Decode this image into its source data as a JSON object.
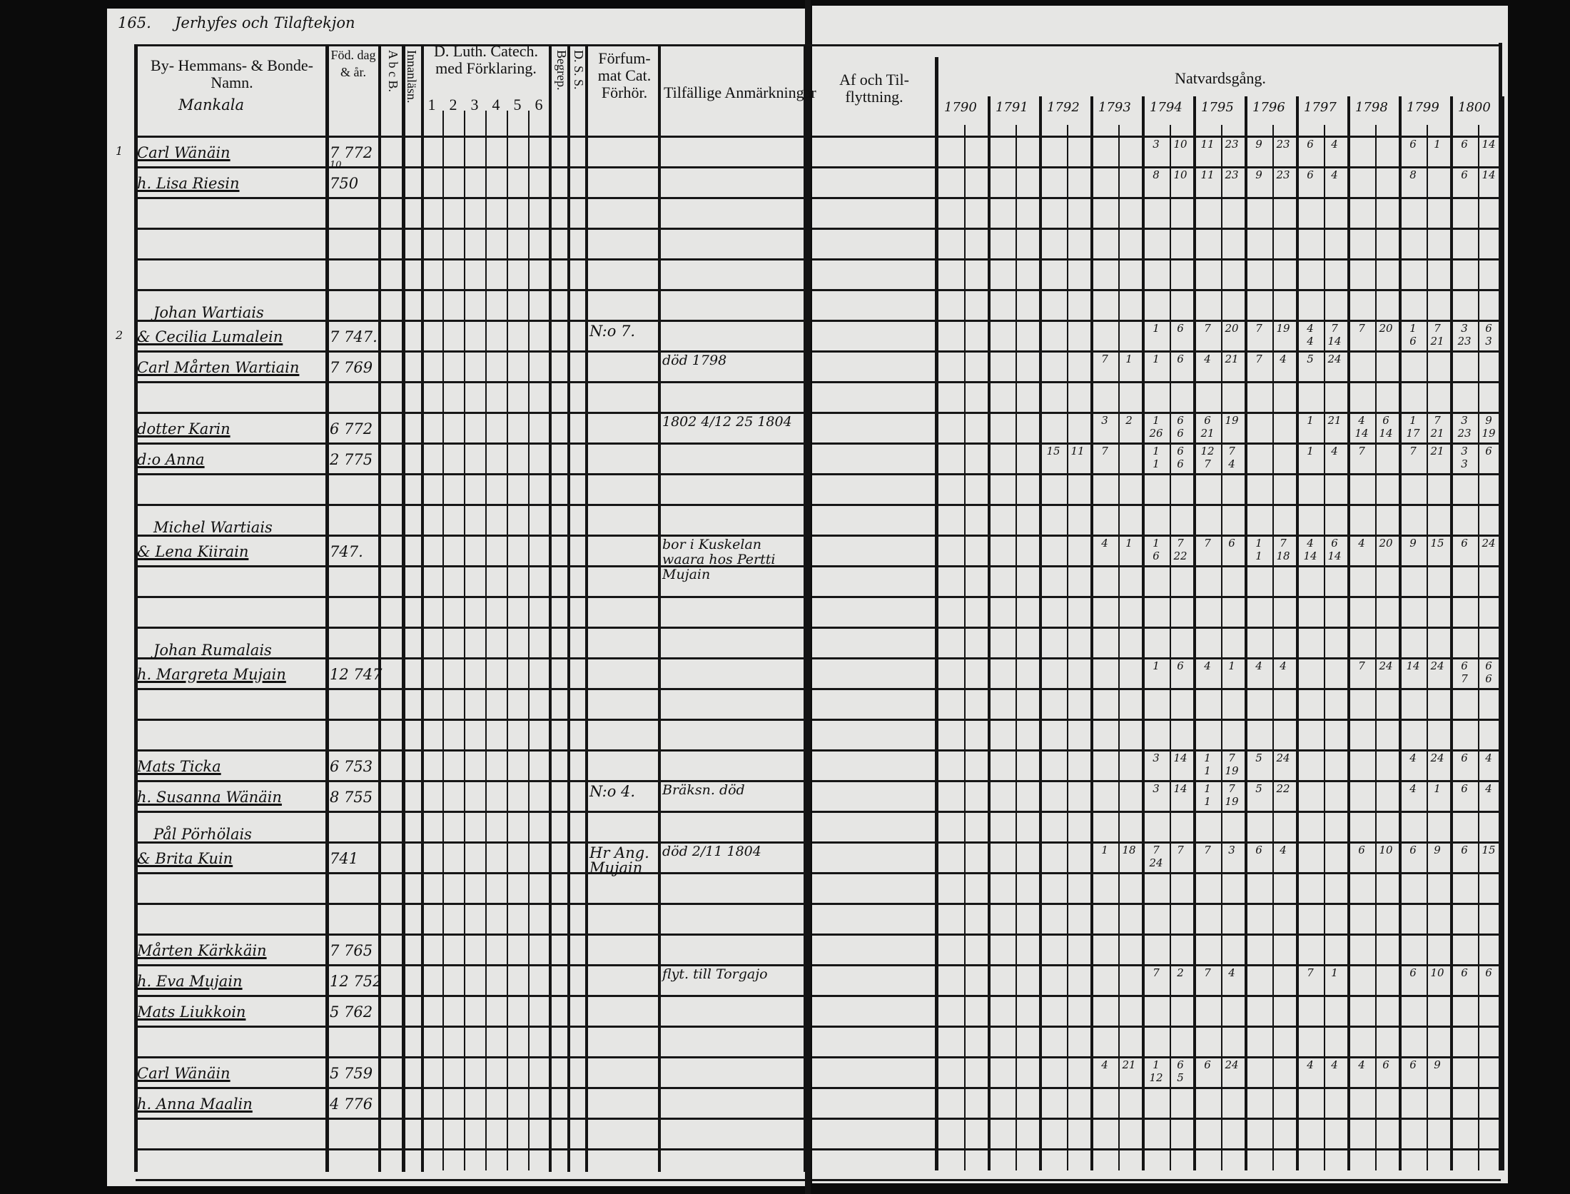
{
  "page_number": "165.",
  "village_title": "Jerhyfes och Tilaftekjon",
  "left_headers": {
    "names": "By- Hemmans- & Bonde-Namn.",
    "village": "Mankala",
    "birth": "Föd. dag & år.",
    "abc": "A b c B.",
    "innanlasning": "Innanläsn.",
    "catech": "D. Luth. Catech. med Förklaring.",
    "catech_parts": [
      "1",
      "2",
      "3",
      "4",
      "5",
      "6"
    ],
    "begrip": "Begrep.",
    "dss": "D. S. S.",
    "forfom": "Förfum-mat Cat. Förhör.",
    "remarks": "Tilfällige Anmärkningar"
  },
  "right_headers": {
    "moving": "Af och Til-flyttning.",
    "communion": "Natvardsgång.",
    "years": [
      "1790",
      "1791",
      "1792",
      "1793",
      "1794",
      "1795",
      "1796",
      "1797",
      "1798",
      "1799",
      "1800"
    ]
  },
  "entries": [
    {
      "row": 0,
      "margin": "1",
      "head": "",
      "name": "Carl Wänäin",
      "birth": "7 772",
      "birth_sub": "10"
    },
    {
      "row": 1,
      "head": "",
      "name": "h. Lisa Riesin",
      "birth": "750"
    },
    {
      "row": 6,
      "margin": "2",
      "head": "Johan Wartiais",
      "name": "& Cecilia Lumalein",
      "birth": "7 747."
    },
    {
      "row": 7,
      "head": "",
      "name": "Carl Mårten Wartiain",
      "birth": "7 769"
    },
    {
      "row": 9,
      "head": "",
      "name": "dotter Karin",
      "birth": "6 772"
    },
    {
      "row": 10,
      "head": "",
      "name": "d:o Anna",
      "birth": "2 775"
    },
    {
      "row": 13,
      "head": "Michel Wartiais",
      "name": "& Lena Kiirain",
      "birth": "747."
    },
    {
      "row": 17,
      "head": "Johan Rumalais",
      "name": "h. Margreta Mujain",
      "birth": "12 747"
    },
    {
      "row": 20,
      "head": "",
      "name": "Mats Ticka",
      "birth": "6 753"
    },
    {
      "row": 21,
      "head": "",
      "name": "h. Susanna Wänäin",
      "birth": "8 755"
    },
    {
      "row": 23,
      "head": "Pål Pörhölais",
      "name": "& Brita Kuin",
      "birth": "741"
    },
    {
      "row": 26,
      "head": "",
      "name": "Mårten Kärkkäin",
      "birth": "7 765"
    },
    {
      "row": 27,
      "head": "",
      "name": "h. Eva Mujain",
      "birth": "12 752"
    },
    {
      "row": 28,
      "head": "",
      "name": "Mats Liukkoin",
      "birth": "5 762"
    },
    {
      "row": 30,
      "head": "",
      "name": "Carl Wänäin",
      "birth": "5 759"
    },
    {
      "row": 31,
      "head": "",
      "name": "h. Anna Maalin",
      "birth": "4 776"
    }
  ],
  "forhor_notes": [
    {
      "row": 6,
      "text": "N:o 7."
    },
    {
      "row": 21,
      "text": "N:o 4."
    },
    {
      "row": 23,
      "text": "Hr Ang. Mujain"
    }
  ],
  "remarks": [
    {
      "row": 7,
      "text": "död 1798"
    },
    {
      "row": 9,
      "text": "1802 4/12 25 1804"
    },
    {
      "row": 13,
      "text": "bor i Kuskelan waara hos Pertti Mujain"
    },
    {
      "row": 21,
      "text": "Bräksn. död"
    },
    {
      "row": 23,
      "text": "död 2/11 1804"
    },
    {
      "row": 27,
      "text": "flyt. till Torgajo"
    }
  ],
  "communion_marks": [
    {
      "row": 0,
      "marks": {
        "1794": "3 10",
        "1795": "11 23",
        "1796": "9 23",
        "1797": "6 4",
        "1799": "6 1",
        "1800": "6 14"
      }
    },
    {
      "row": 1,
      "marks": {
        "1794": "8 10",
        "1795": "11 23",
        "1796": "9 23",
        "1797": "6 4",
        "1799": "8",
        "1800": "6 14"
      }
    },
    {
      "row": 6,
      "marks": {
        "1794": "1 6",
        "1795": "7 20",
        "1796": "7 19",
        "1797": "4 7 4 14",
        "1798": "7 20",
        "1799": "1 7 6 21",
        "1800": "3 6 23 3"
      }
    },
    {
      "row": 7,
      "marks": {
        "1793": "7 1",
        "1794": "1 6",
        "1795": "4 21",
        "1796": "7 4",
        "1797": "5 24"
      }
    },
    {
      "row": 9,
      "marks": {
        "1793": "3 2",
        "1794": "1 6 26 6",
        "1795": "6 19 21",
        "1797": "1 21",
        "1798": "4 6 14 14",
        "1799": "1 7 17 21",
        "1800": "3 9 23 19"
      }
    },
    {
      "row": 10,
      "marks": {
        "1792": "15 11",
        "1793": "7",
        "1794": "1 6 1 6",
        "1795": "12 7 7 4",
        "1797": "1 4",
        "1798": "7",
        "1799": "7 21",
        "1800": "3 6 3"
      }
    },
    {
      "row": 13,
      "marks": {
        "1793": "4 1",
        "1794": "1 7 6 22",
        "1795": "7 6",
        "1796": "1 7 1 18",
        "1797": "4 6 14 14",
        "1798": "4 20",
        "1799": "9 15",
        "1800": "6 24"
      }
    },
    {
      "row": 17,
      "marks": {
        "1794": "1 6",
        "1795": "4 1",
        "1796": "4 4",
        "1798": "7 24",
        "1799": "14 24",
        "1800": "6 6 7 6"
      }
    },
    {
      "row": 20,
      "marks": {
        "1794": "3 14",
        "1795": "1 7 1 19",
        "1796": "5 24",
        "1799": "4 24",
        "1800": "6 4"
      }
    },
    {
      "row": 21,
      "marks": {
        "1794": "3 14",
        "1795": "1 7 1 19",
        "1796": "5 22",
        "1799": "4 1",
        "1800": "6 4"
      }
    },
    {
      "row": 23,
      "marks": {
        "1793": "1 18",
        "1794": "7 7 24",
        "1795": "7 3",
        "1796": "6 4",
        "1798": "6 10",
        "1799": "6 9",
        "1800": "6 15"
      }
    },
    {
      "row": 27,
      "marks": {
        "1794": "7 2",
        "1795": "7 4",
        "1797": "7 1",
        "1799": "6 10",
        "1800": "6 6"
      }
    },
    {
      "row": 30,
      "marks": {
        "1793": "4 21",
        "1794": "1 6 12 5",
        "1795": "6 24",
        "1797": "4 4",
        "1798": "4 6",
        "1799": "6 9"
      }
    }
  ],
  "colors": {
    "paper": "#e6e6e4",
    "ink": "#141414",
    "background": "#0b0b0b"
  }
}
